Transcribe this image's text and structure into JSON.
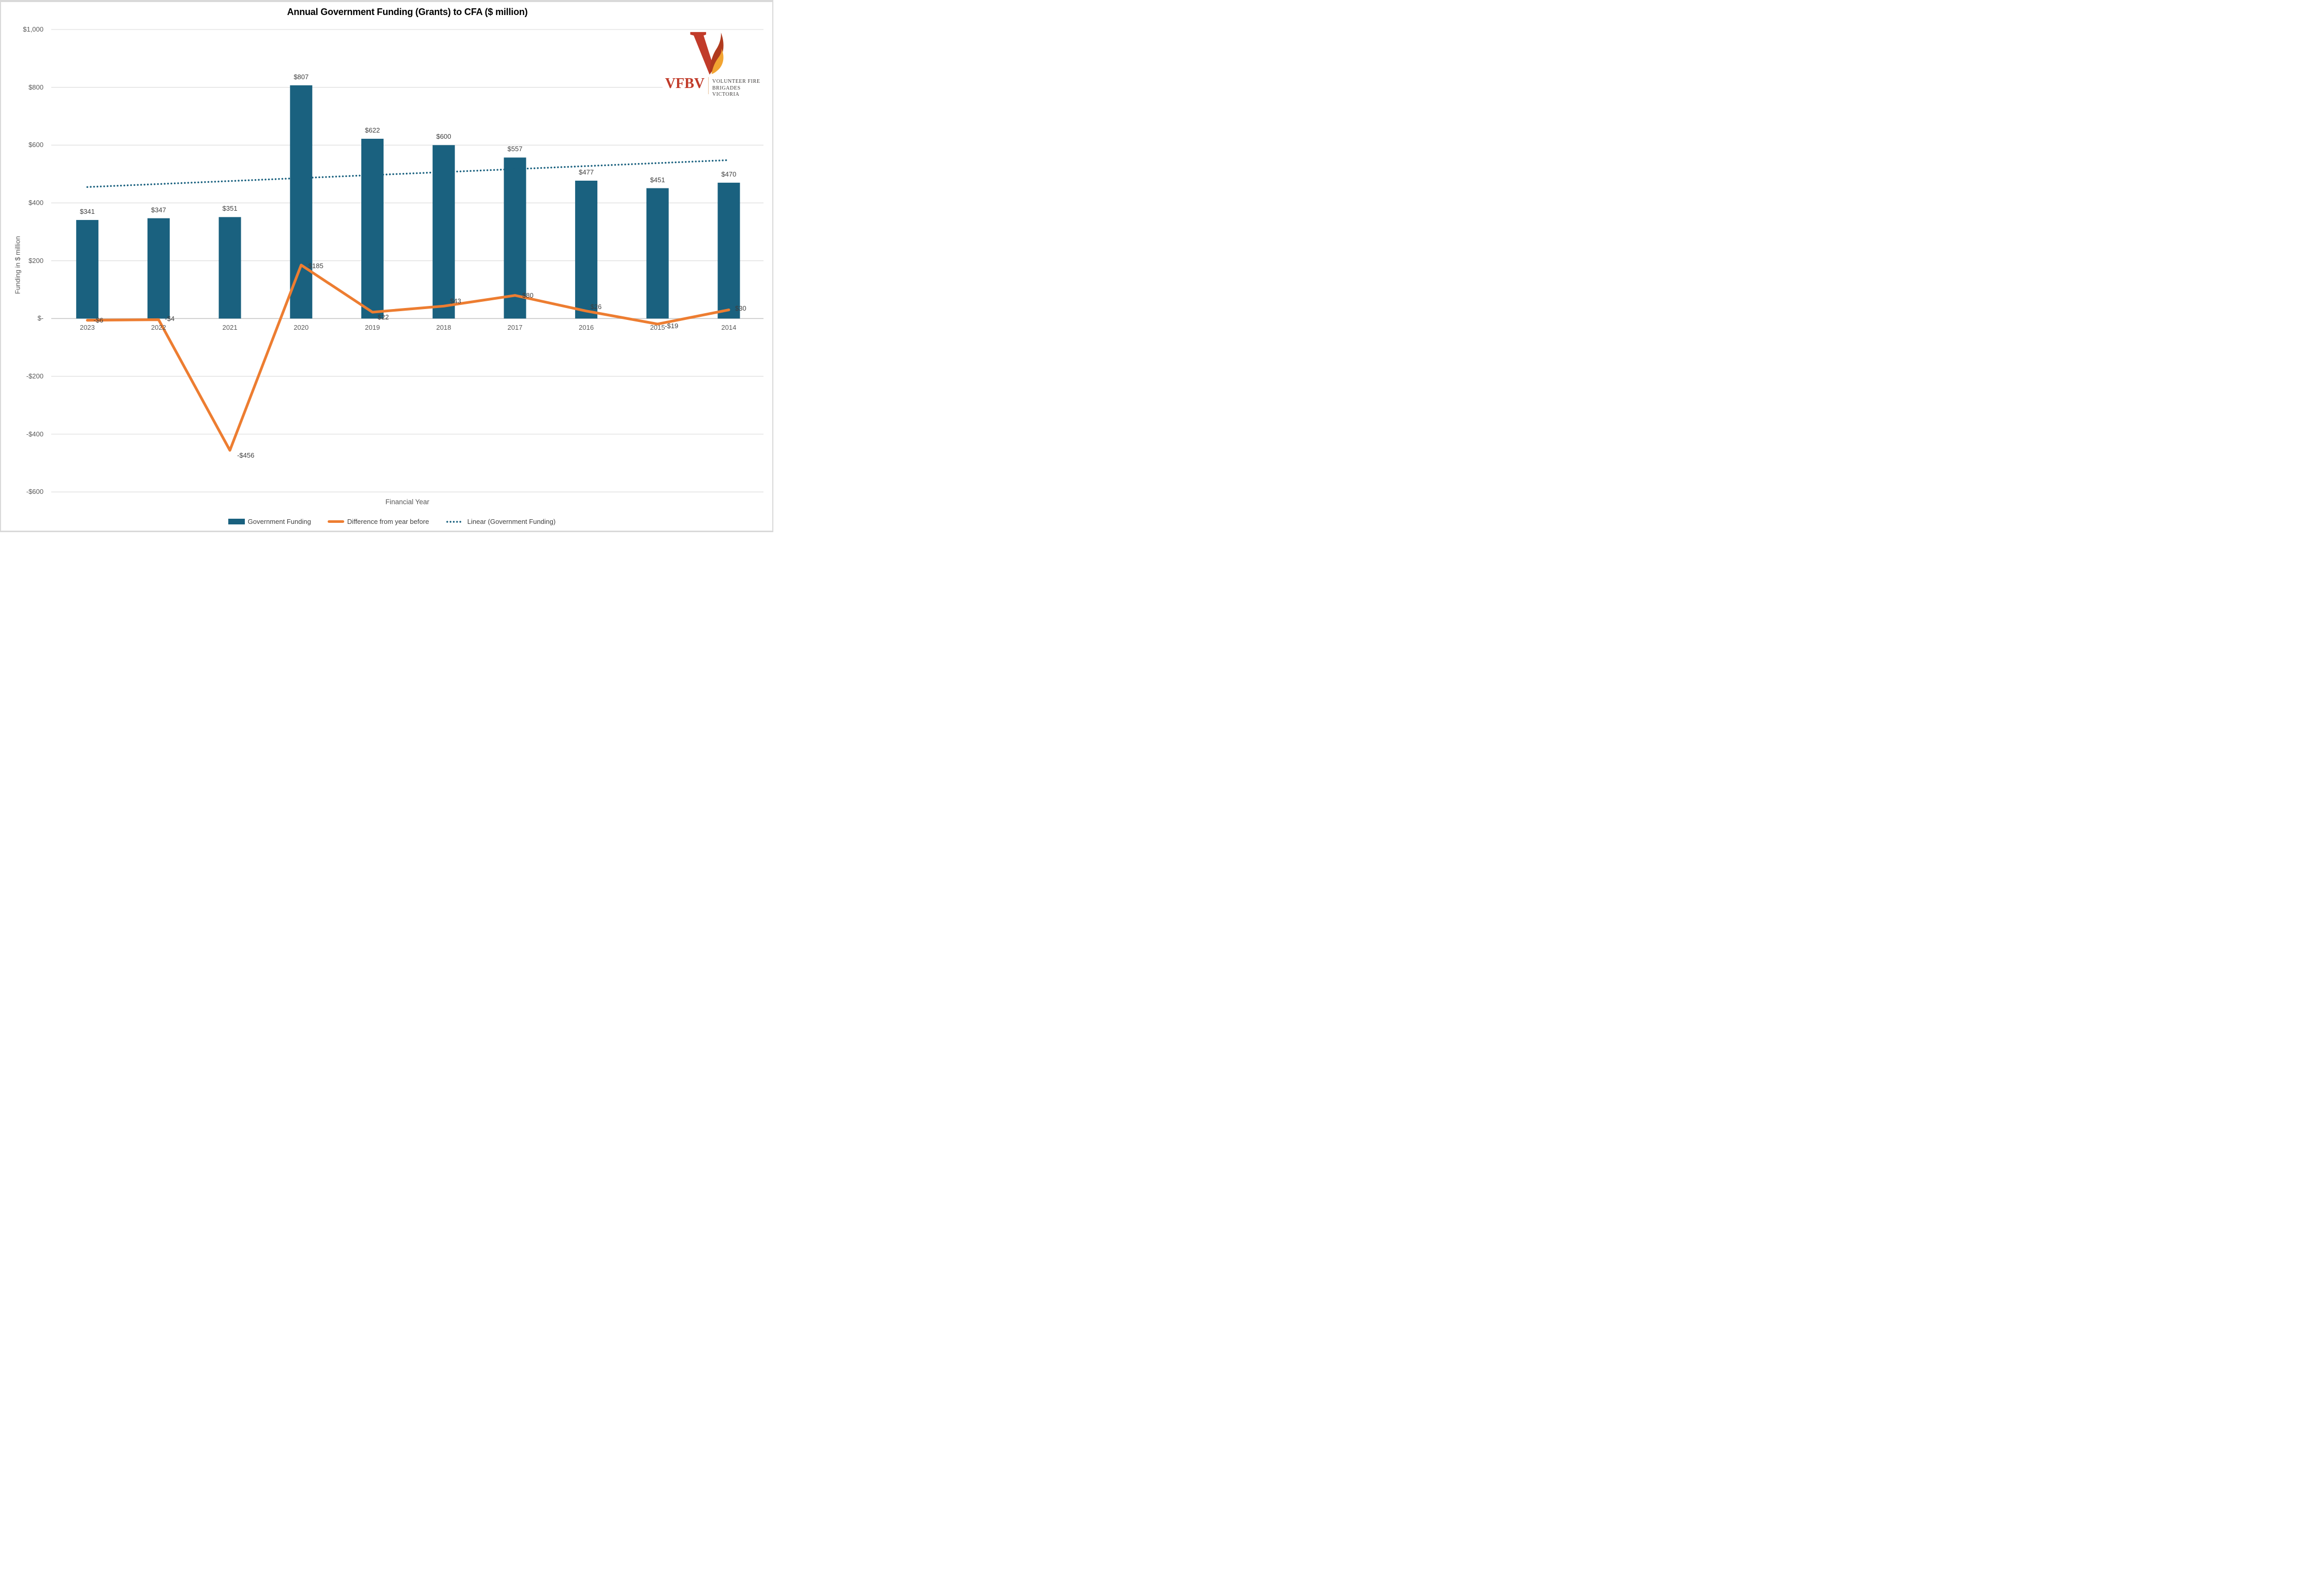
{
  "title": "Annual Government Funding (Grants) to CFA ($ million)",
  "logo": {
    "acronym": "VFBV",
    "org_line1": "VOLUNTEER FIRE",
    "org_line2": "BRIGADES VICTORIA",
    "colors": {
      "red": "#c13b2a",
      "flame_dark": "#b03a1e",
      "flame_orange": "#f2a431",
      "text": "#3d3a39"
    }
  },
  "colors": {
    "bar_blue": "#1a617f",
    "orange": "#ed7d31",
    "grid": "#d9d9d9",
    "zero_line": "#c8c8c8",
    "axis_text": "#595959",
    "data_label": "#3f3f3f",
    "frame": "#d9d9d9"
  },
  "chart_data": {
    "type": "bar",
    "title": "Annual Government Funding (Grants) to CFA ($ million)",
    "categories": [
      "2023",
      "2022",
      "2021",
      "2020",
      "2019",
      "2018",
      "2017",
      "2016",
      "2015",
      "2014"
    ],
    "series": [
      {
        "name": "Government Funding",
        "type": "column",
        "color": "#1a617f",
        "values": [
          341,
          347,
          351,
          807,
          622,
          600,
          557,
          477,
          451,
          470
        ],
        "labels": [
          "$341",
          "$347",
          "$351",
          "$807",
          "$622",
          "$600",
          "$557",
          "$477",
          "$451",
          "$470"
        ]
      },
      {
        "name": "Difference from year before",
        "type": "line",
        "color": "#ed7d31",
        "values": [
          -6,
          -4,
          -456,
          185,
          22,
          43,
          80,
          26,
          -19,
          30
        ],
        "labels": [
          "-$6",
          "-$4",
          "-$456",
          "$185",
          "$22",
          "$43",
          "$80",
          "$26",
          "-$19",
          "$30"
        ]
      },
      {
        "name": "Linear (Government Funding)",
        "type": "linear-trend",
        "style": "dotted",
        "color": "#1a617f",
        "start_value": 455,
        "end_value": 548
      }
    ],
    "xlabel": "Financial Year",
    "ylabel": "Funding in $ million",
    "ylim": [
      -600,
      1000
    ],
    "ytick_step": 200,
    "yticks": [
      {
        "value": 1000,
        "label": "$1,000"
      },
      {
        "value": 800,
        "label": "$800"
      },
      {
        "value": 600,
        "label": "$600"
      },
      {
        "value": 400,
        "label": "$400"
      },
      {
        "value": 200,
        "label": "$200"
      },
      {
        "value": 0,
        "label": "$-"
      },
      {
        "value": -200,
        "label": "-$200"
      },
      {
        "value": -400,
        "label": "-$400"
      },
      {
        "value": -600,
        "label": "-$600"
      }
    ],
    "grid": true,
    "legend_position": "bottom"
  }
}
